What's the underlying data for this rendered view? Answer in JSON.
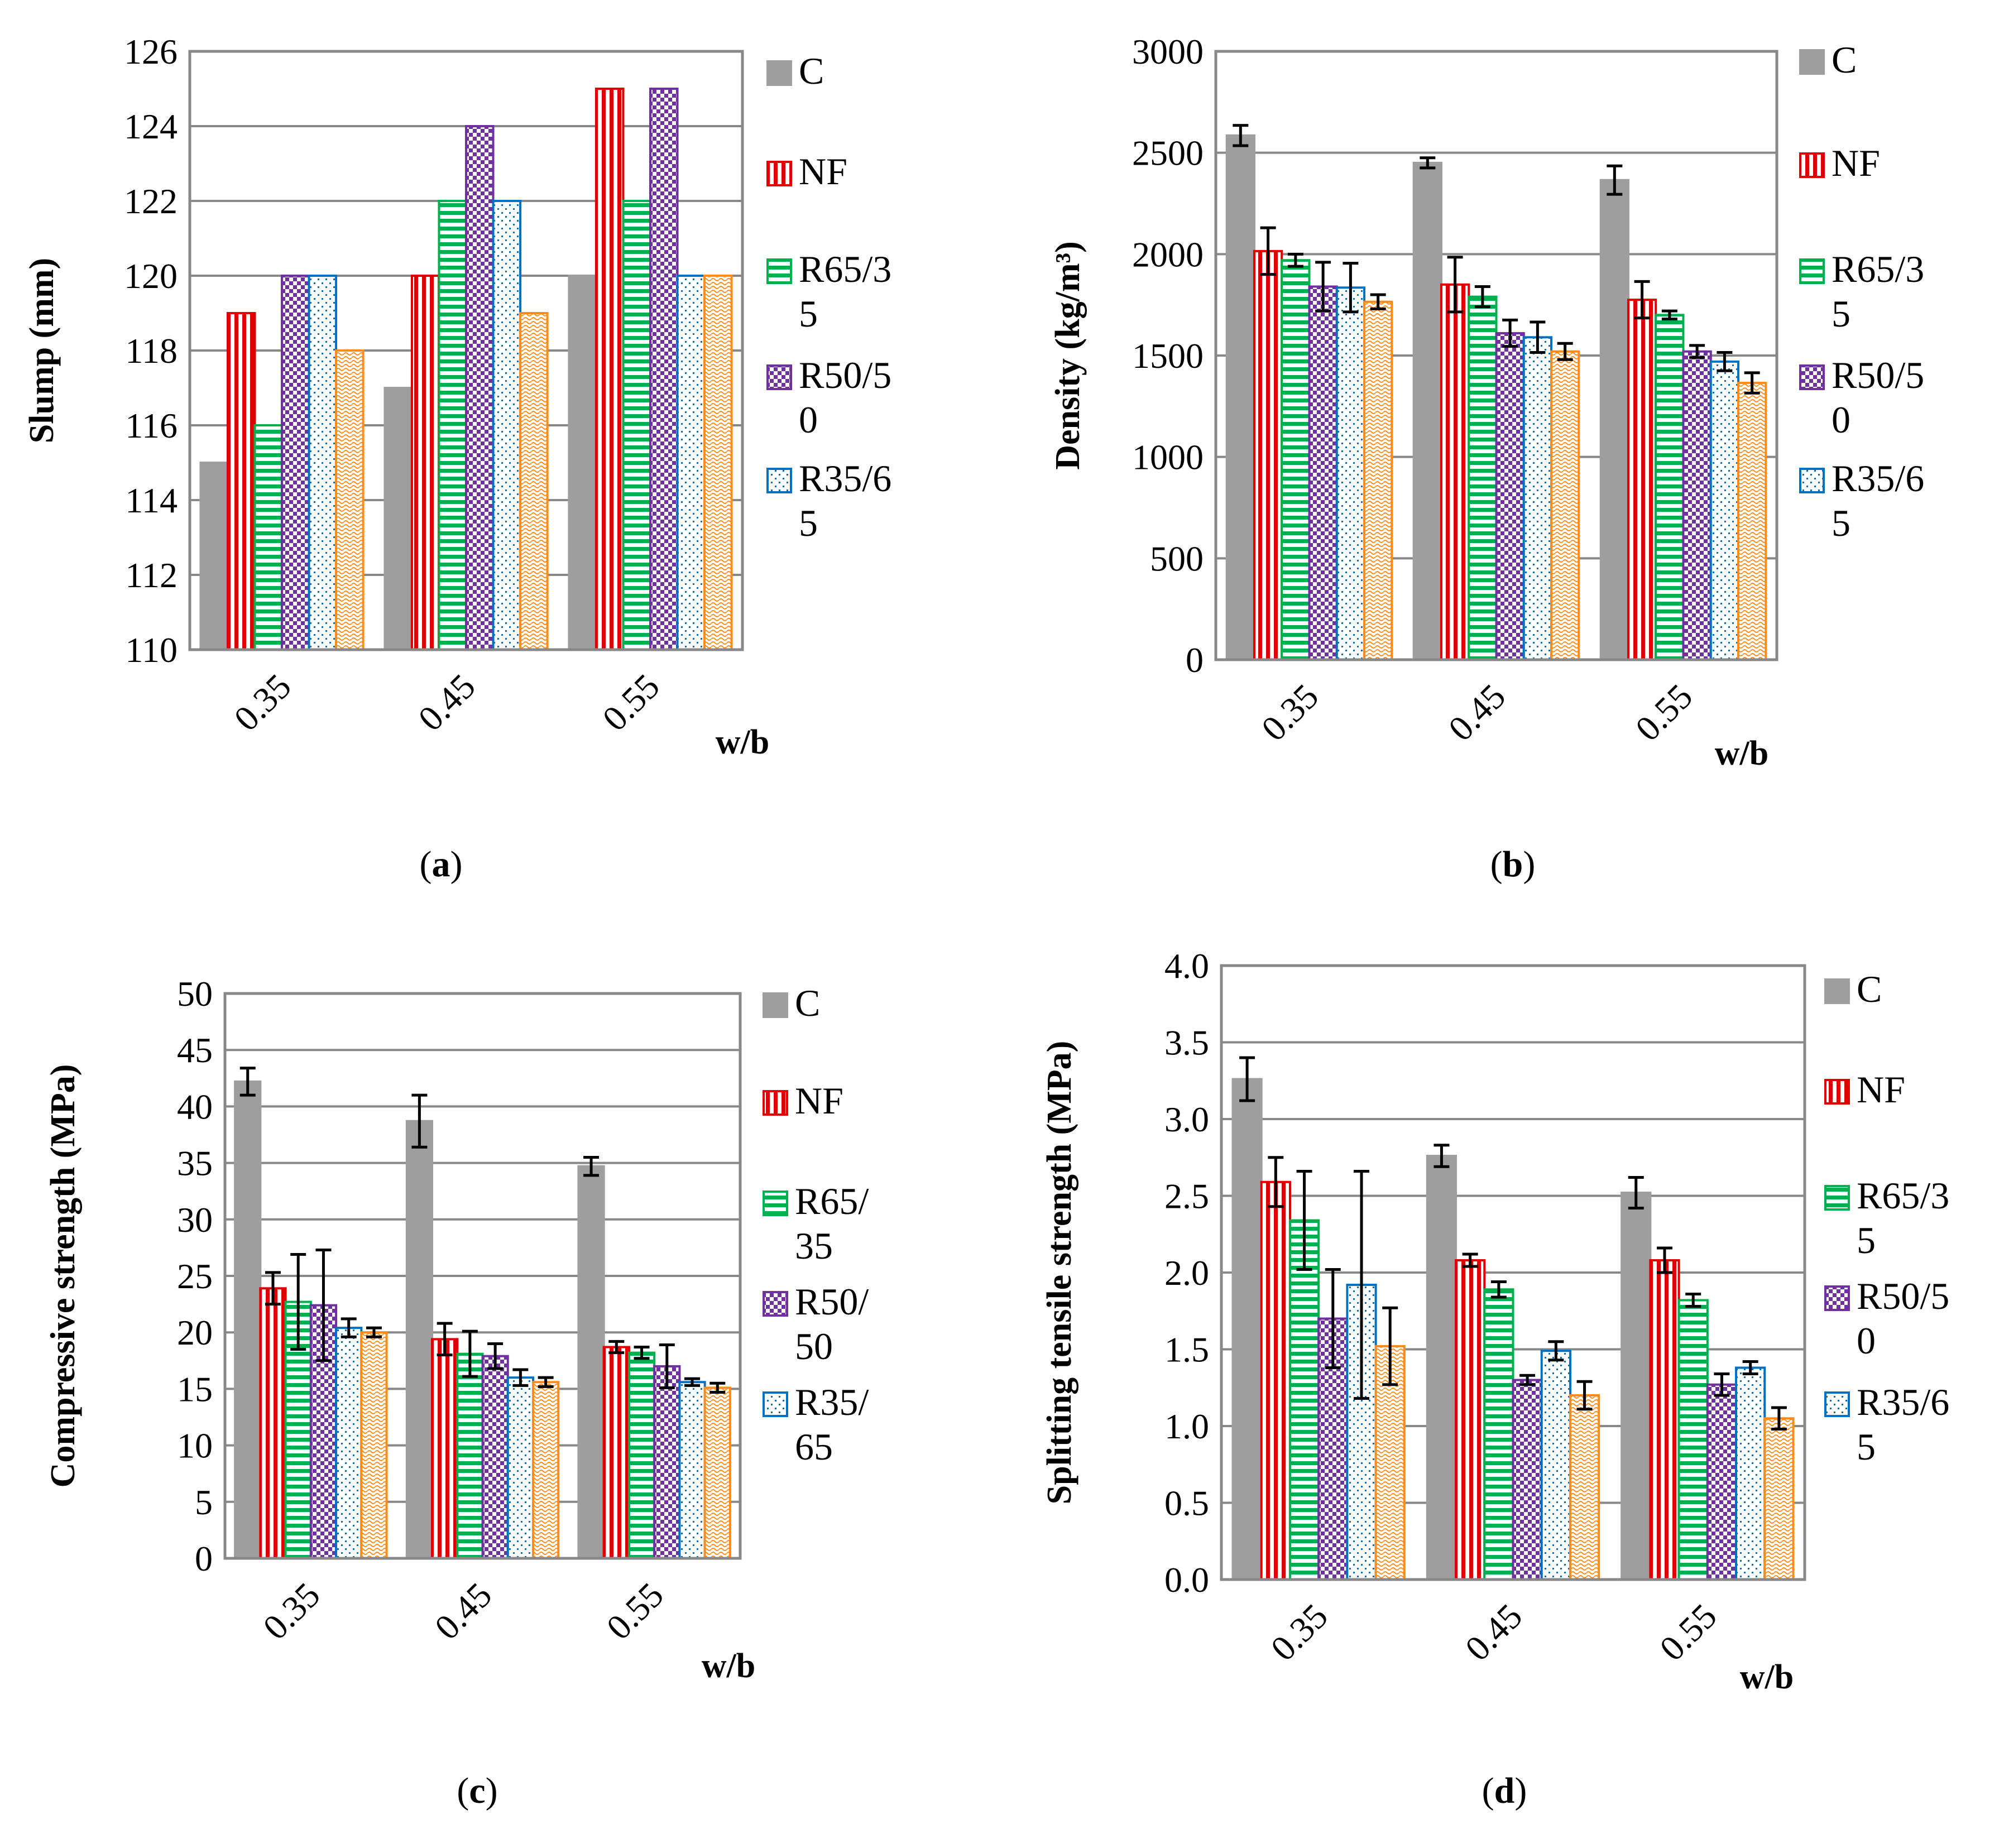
{
  "colors": {
    "C": "#9e9e9e",
    "NF": "#e00000",
    "R65/35": "#00b04f",
    "R50/50": "#7030a0",
    "R35/65": "#0070c0",
    "extra": "#ff8c1a",
    "grid": "#888888",
    "frame": "#888888"
  },
  "patterns": [
    "solid",
    "vertical",
    "horizontal",
    "checker",
    "dots",
    "waves"
  ],
  "chart_data": [
    {
      "id": "a",
      "type": "bar",
      "caption": "(a)",
      "caption_letter": "a",
      "xlabel": "w/b",
      "ylabel": "Slump (mm)",
      "categories": [
        "0.35",
        "0.45",
        "0.55"
      ],
      "ylim": [
        110,
        126
      ],
      "yticks": [
        "110",
        "112",
        "114",
        "116",
        "118",
        "120",
        "122",
        "124",
        "126"
      ],
      "legend_lines": [
        [
          "C"
        ],
        [
          "NF"
        ],
        [
          "R65/3",
          "5"
        ],
        [
          "R50/5",
          "0"
        ],
        [
          "R35/6",
          "5"
        ]
      ],
      "series": [
        {
          "name": "C",
          "values": [
            115,
            117,
            120
          ]
        },
        {
          "name": "NF",
          "values": [
            119,
            120,
            125
          ]
        },
        {
          "name": "R65/35",
          "values": [
            116,
            122,
            122
          ]
        },
        {
          "name": "R50/50",
          "values": [
            120,
            124,
            125
          ]
        },
        {
          "name": "R35/65",
          "values": [
            120,
            122,
            120
          ]
        },
        {
          "values": [
            118,
            119,
            120
          ]
        }
      ]
    },
    {
      "id": "b",
      "type": "bar",
      "caption": "(b)",
      "caption_letter": "b",
      "xlabel": "w/b",
      "ylabel": "Density (kg/m³)",
      "categories": [
        "0.35",
        "0.45",
        "0.55"
      ],
      "ylim": [
        0,
        3000
      ],
      "yticks": [
        "0",
        "500",
        "1000",
        "1500",
        "2000",
        "2500",
        "3000"
      ],
      "legend_lines": [
        [
          "C"
        ],
        [
          "NF"
        ],
        [
          "R65/3",
          "5"
        ],
        [
          "R50/5",
          "0"
        ],
        [
          "R35/6",
          "5"
        ]
      ],
      "series": [
        {
          "name": "C",
          "values": [
            2585,
            2450,
            2365
          ],
          "errors": [
            50,
            25,
            70
          ]
        },
        {
          "name": "NF",
          "values": [
            2015,
            1850,
            1775
          ],
          "errors": [
            115,
            135,
            90
          ]
        },
        {
          "name": "R65/35",
          "values": [
            1970,
            1790,
            1700
          ],
          "errors": [
            30,
            50,
            20
          ]
        },
        {
          "name": "R50/50",
          "values": [
            1840,
            1610,
            1520
          ],
          "errors": [
            120,
            65,
            30
          ]
        },
        {
          "name": "R35/65",
          "values": [
            1835,
            1590,
            1470
          ],
          "errors": [
            120,
            75,
            45
          ]
        },
        {
          "values": [
            1765,
            1520,
            1365
          ],
          "errors": [
            35,
            40,
            50
          ]
        }
      ]
    },
    {
      "id": "c",
      "type": "bar",
      "caption": "(c)",
      "caption_letter": "c",
      "xlabel": "w/b",
      "ylabel": "Compressive strength (MPa)",
      "categories": [
        "0.35",
        "0.45",
        "0.55"
      ],
      "ylim": [
        0,
        50
      ],
      "yticks": [
        "0",
        "5",
        "10",
        "15",
        "20",
        "25",
        "30",
        "35",
        "40",
        "45",
        "50"
      ],
      "legend_lines": [
        [
          "C"
        ],
        [
          "NF"
        ],
        [
          "R65/",
          "35"
        ],
        [
          "R50/",
          "50"
        ],
        [
          "R35/",
          "65"
        ]
      ],
      "series": [
        {
          "name": "C",
          "values": [
            42.2,
            38.7,
            34.7
          ],
          "errors": [
            1.2,
            2.3,
            0.8
          ]
        },
        {
          "name": "NF",
          "values": [
            23.9,
            19.4,
            18.7
          ],
          "errors": [
            1.4,
            1.4,
            0.5
          ]
        },
        {
          "name": "R65/35",
          "values": [
            22.7,
            18.1,
            18.2
          ],
          "errors": [
            4.2,
            2.0,
            0.5
          ]
        },
        {
          "name": "R50/50",
          "values": [
            22.4,
            17.9,
            17.0
          ],
          "errors": [
            4.9,
            1.1,
            1.9
          ]
        },
        {
          "name": "R35/65",
          "values": [
            20.4,
            16.0,
            15.6
          ],
          "errors": [
            0.8,
            0.7,
            0.3
          ]
        },
        {
          "values": [
            20.0,
            15.6,
            15.1
          ],
          "errors": [
            0.4,
            0.4,
            0.4
          ]
        }
      ]
    },
    {
      "id": "d",
      "type": "bar",
      "caption": "(d)",
      "caption_letter": "d",
      "xlabel": "w/b",
      "ylabel": "Splitting tensile strength (MPa)",
      "categories": [
        "0.35",
        "0.45",
        "0.55"
      ],
      "ylim": [
        0,
        4.0
      ],
      "yticks": [
        "0.0",
        "0.5",
        "1.0",
        "1.5",
        "2.0",
        "2.5",
        "3.0",
        "3.5",
        "4.0"
      ],
      "legend_lines": [
        [
          "C"
        ],
        [
          "NF"
        ],
        [
          "R65/3",
          "5"
        ],
        [
          "R50/5",
          "0"
        ],
        [
          "R35/6",
          "5"
        ]
      ],
      "series": [
        {
          "name": "C",
          "values": [
            3.26,
            2.76,
            2.52
          ],
          "errors": [
            0.14,
            0.07,
            0.1
          ]
        },
        {
          "name": "NF",
          "values": [
            2.59,
            2.08,
            2.08
          ],
          "errors": [
            0.16,
            0.04,
            0.08
          ]
        },
        {
          "name": "R65/35",
          "values": [
            2.34,
            1.89,
            1.82
          ],
          "errors": [
            0.32,
            0.05,
            0.04
          ]
        },
        {
          "name": "R50/50",
          "values": [
            1.7,
            1.3,
            1.27
          ],
          "errors": [
            0.32,
            0.03,
            0.07
          ]
        },
        {
          "name": "R35/65",
          "values": [
            1.92,
            1.49,
            1.38
          ],
          "errors": [
            0.74,
            0.06,
            0.04
          ]
        },
        {
          "values": [
            1.52,
            1.2,
            1.05
          ],
          "errors": [
            0.25,
            0.09,
            0.07
          ]
        }
      ]
    }
  ]
}
